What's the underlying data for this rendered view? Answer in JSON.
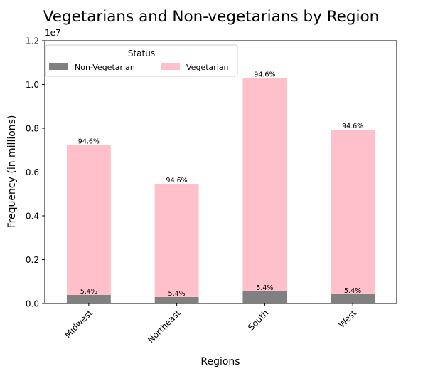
{
  "chart_data": {
    "type": "bar",
    "stacked": true,
    "title": "Vegetarians and Non-vegetarians by Region",
    "xlabel": "Regions",
    "ylabel": "Frequency (in millions)",
    "y_offset_label": "1e7",
    "ylim": [
      0,
      12000000
    ],
    "yticks": [
      0,
      2000000,
      4000000,
      6000000,
      8000000,
      10000000,
      12000000
    ],
    "ytick_labels": [
      "0.0",
      "0.2",
      "0.4",
      "0.6",
      "0.8",
      "1.0",
      "1.2"
    ],
    "categories": [
      "Midwest",
      "Northeast",
      "South",
      "West"
    ],
    "series": [
      {
        "name": "Non-Vegetarian",
        "color": "#808080",
        "values": [
          390000,
          295000,
          555000,
          430000
        ],
        "labels": [
          "5.4%",
          "5.4%",
          "5.4%",
          "5.4%"
        ]
      },
      {
        "name": "Vegetarian",
        "color": "#ffc0cb",
        "values": [
          6850000,
          5170000,
          9740000,
          7500000
        ],
        "labels": [
          "94.6%",
          "94.6%",
          "94.6%",
          "94.6%"
        ]
      }
    ],
    "legend": {
      "title": "Status",
      "position": "top-left",
      "columns": 2
    },
    "grid": false
  }
}
